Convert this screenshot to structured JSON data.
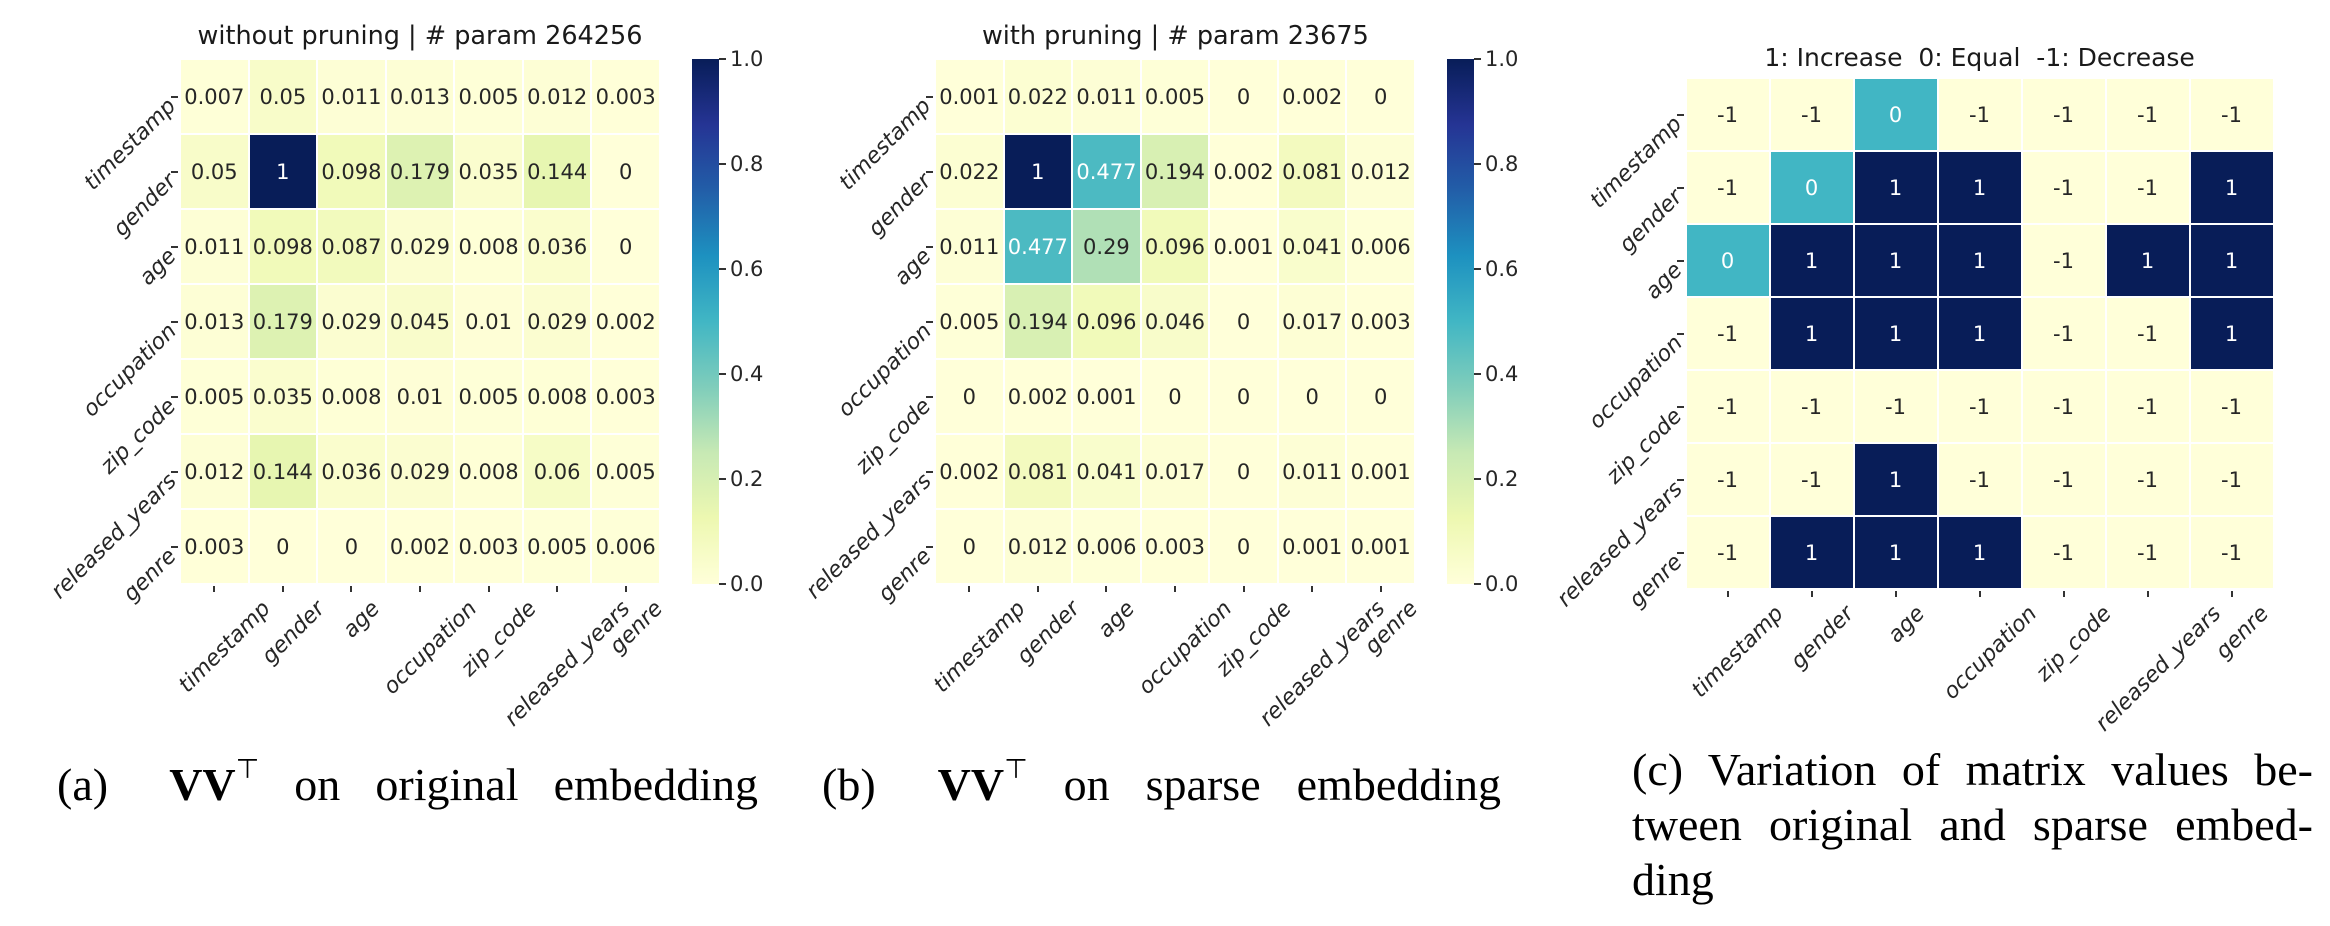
{
  "colormap_stops": [
    "#ffffd9",
    "#edf8b1",
    "#c7e9b4",
    "#7fcdbb",
    "#41b6c4",
    "#1d91c0",
    "#225ea8",
    "#253494",
    "#081d58"
  ],
  "annotation_text_colors": {
    "dark": "#262626",
    "light": "#ffffff"
  },
  "captions": {
    "a": {
      "prefix": "(a)",
      "matrix": "VV",
      "transpose": "⊤",
      "rest": "on original embedding"
    },
    "b": {
      "prefix": "(b)",
      "matrix": "VV",
      "transpose": "⊤",
      "rest": "on sparse embedding"
    },
    "c": {
      "line1": "(c) Variation of matrix values be-",
      "line2": "tween original and sparse embed-",
      "line3": "ding"
    }
  },
  "chart_data": [
    {
      "type": "heatmap",
      "title": "without pruning | # param 264256",
      "rows": [
        "timestamp",
        "gender",
        "age",
        "occupation",
        "zip_code",
        "released_years",
        "genre"
      ],
      "cols": [
        "timestamp",
        "gender",
        "age",
        "occupation",
        "zip_code",
        "released_years",
        "genre"
      ],
      "values": [
        [
          0.007,
          0.05,
          0.011,
          0.013,
          0.005,
          0.012,
          0.003
        ],
        [
          0.05,
          1,
          0.098,
          0.179,
          0.035,
          0.144,
          0
        ],
        [
          0.011,
          0.098,
          0.087,
          0.029,
          0.008,
          0.036,
          0
        ],
        [
          0.013,
          0.179,
          0.029,
          0.045,
          0.01,
          0.029,
          0.002
        ],
        [
          0.005,
          0.035,
          0.008,
          0.01,
          0.005,
          0.008,
          0.003
        ],
        [
          0.012,
          0.144,
          0.036,
          0.029,
          0.008,
          0.06,
          0.005
        ],
        [
          0.003,
          0,
          0,
          0.002,
          0.003,
          0.005,
          0.006
        ]
      ],
      "vmin": 0,
      "vmax": 1,
      "colormap": "YlGnBu",
      "colorbar_ticks": [
        "1.0",
        "0.8",
        "0.6",
        "0.4",
        "0.2",
        "0.0"
      ]
    },
    {
      "type": "heatmap",
      "title": "with pruning | # param 23675",
      "rows": [
        "timestamp",
        "gender",
        "age",
        "occupation",
        "zip_code",
        "released_years",
        "genre"
      ],
      "cols": [
        "timestamp",
        "gender",
        "age",
        "occupation",
        "zip_code",
        "released_years",
        "genre"
      ],
      "values": [
        [
          0.001,
          0.022,
          0.011,
          0.005,
          0,
          0.002,
          0
        ],
        [
          0.022,
          1,
          0.477,
          0.194,
          0.002,
          0.081,
          0.012
        ],
        [
          0.011,
          0.477,
          0.29,
          0.096,
          0.001,
          0.041,
          0.006
        ],
        [
          0.005,
          0.194,
          0.096,
          0.046,
          0,
          0.017,
          0.003
        ],
        [
          0,
          0.002,
          0.001,
          0,
          0,
          0,
          0
        ],
        [
          0.002,
          0.081,
          0.041,
          0.017,
          0,
          0.011,
          0.001
        ],
        [
          0,
          0.012,
          0.006,
          0.003,
          0,
          0.001,
          0.001
        ]
      ],
      "vmin": 0,
      "vmax": 1,
      "colormap": "YlGnBu",
      "colorbar_ticks": [
        "1.0",
        "0.8",
        "0.6",
        "0.4",
        "0.2",
        "0.0"
      ]
    },
    {
      "type": "heatmap",
      "title": "1: Increase  0: Equal  -1: Decrease",
      "rows": [
        "timestamp",
        "gender",
        "age",
        "occupation",
        "zip_code",
        "released_years",
        "genre"
      ],
      "cols": [
        "timestamp",
        "gender",
        "age",
        "occupation",
        "zip_code",
        "released_years",
        "genre"
      ],
      "values": [
        [
          -1,
          -1,
          0,
          -1,
          -1,
          -1,
          -1
        ],
        [
          -1,
          0,
          1,
          1,
          -1,
          -1,
          1
        ],
        [
          0,
          1,
          1,
          1,
          -1,
          1,
          1
        ],
        [
          -1,
          1,
          1,
          1,
          -1,
          -1,
          1
        ],
        [
          -1,
          -1,
          -1,
          -1,
          -1,
          -1,
          -1
        ],
        [
          -1,
          -1,
          1,
          -1,
          -1,
          -1,
          -1
        ],
        [
          -1,
          1,
          1,
          1,
          -1,
          -1,
          -1
        ]
      ],
      "vmin": -1,
      "vmax": 1,
      "colormap": "YlGnBu",
      "colorbar_ticks": null
    }
  ]
}
